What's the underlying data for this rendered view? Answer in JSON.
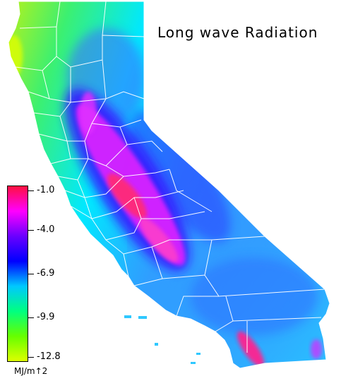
{
  "title": "Long wave Radiation",
  "legend": {
    "ticks": [
      "-1.0",
      "-4.0",
      "-6.9",
      "-9.9",
      "-12.8"
    ],
    "units": "MJ/m↑2",
    "colors": [
      "#ff1040",
      "#ff00ff",
      "#6a00ff",
      "#0000ff",
      "#00c8ff",
      "#00ff80",
      "#66ff00",
      "#ddff00"
    ]
  },
  "map_colors": {
    "coast": "#3cf070",
    "north_coast": "#b8f020",
    "inland": "#00e8ff",
    "body": "#3a9cff",
    "mountains": "#2040ff",
    "valley_high": "#ff40ff",
    "valley_peak": "#ff2070",
    "boundaries": "#ffffff"
  }
}
